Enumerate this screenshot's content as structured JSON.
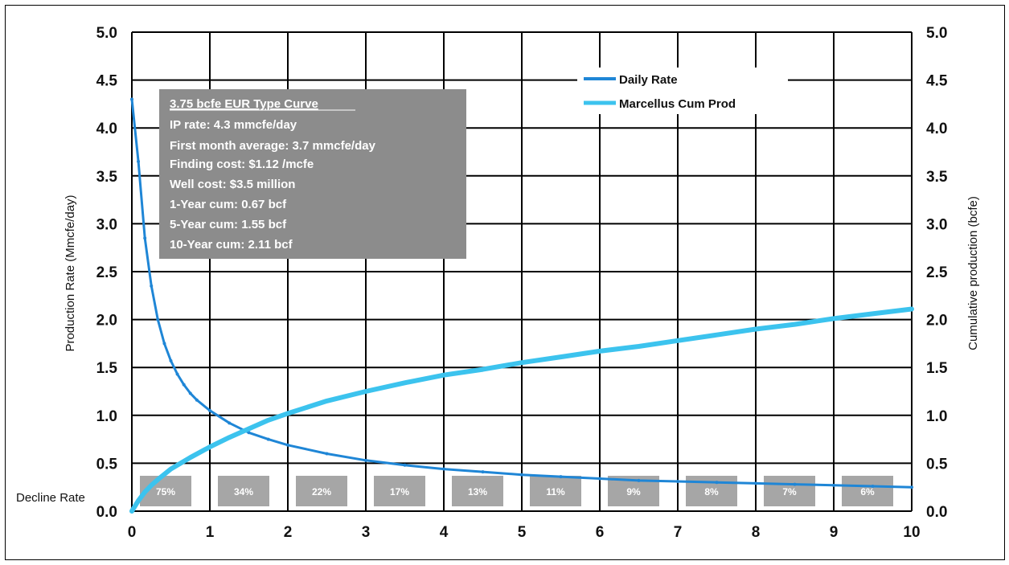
{
  "chart_data": {
    "type": "line",
    "xlabel": "",
    "ylabel_left": "Production Rate (Mmcfe/day)",
    "ylabel_right": "Cumulative production (bcfe)",
    "xlim": [
      0,
      10
    ],
    "ylim_left": [
      0,
      5
    ],
    "ylim_right": [
      0,
      5
    ],
    "x_ticks": [
      "0",
      "1",
      "2",
      "3",
      "4",
      "5",
      "6",
      "7",
      "8",
      "9",
      "10"
    ],
    "y_ticks": [
      "0.0",
      "0.5",
      "1.0",
      "1.5",
      "2.0",
      "2.5",
      "3.0",
      "3.5",
      "4.0",
      "4.5",
      "5.0"
    ],
    "grid": true,
    "legend_position": "top-right",
    "series": [
      {
        "name": "Daily Rate",
        "color": "#1f86d6",
        "x": [
          0,
          0.083,
          0.167,
          0.25,
          0.333,
          0.417,
          0.5,
          0.583,
          0.667,
          0.75,
          0.833,
          1,
          1.25,
          1.5,
          1.75,
          2,
          2.5,
          3,
          3.5,
          4,
          4.5,
          5,
          5.5,
          6,
          6.5,
          7,
          7.5,
          8,
          8.5,
          9,
          9.5,
          10
        ],
        "values": [
          4.3,
          3.65,
          2.85,
          2.35,
          2.0,
          1.75,
          1.57,
          1.43,
          1.32,
          1.23,
          1.16,
          1.05,
          0.92,
          0.82,
          0.75,
          0.69,
          0.6,
          0.53,
          0.48,
          0.44,
          0.41,
          0.38,
          0.36,
          0.34,
          0.32,
          0.31,
          0.3,
          0.29,
          0.28,
          0.27,
          0.26,
          0.25
        ]
      },
      {
        "name": "Marcellus Cum Prod",
        "color": "#3cc3ee",
        "x": [
          0,
          0.083,
          0.167,
          0.25,
          0.333,
          0.5,
          0.75,
          1,
          1.25,
          1.5,
          1.75,
          2,
          2.5,
          3,
          3.5,
          4,
          4.5,
          5,
          5.5,
          6,
          6.5,
          7,
          7.5,
          8,
          8.5,
          9,
          9.5,
          10
        ],
        "values": [
          0,
          0.11,
          0.2,
          0.27,
          0.33,
          0.44,
          0.56,
          0.67,
          0.77,
          0.86,
          0.95,
          1.02,
          1.15,
          1.25,
          1.34,
          1.42,
          1.48,
          1.55,
          1.61,
          1.67,
          1.72,
          1.78,
          1.84,
          1.9,
          1.95,
          2.01,
          2.06,
          2.11
        ]
      }
    ],
    "decline_rate": {
      "label": "Decline Rate",
      "values": [
        "75%",
        "34%",
        "22%",
        "17%",
        "13%",
        "11%",
        "9%",
        "8%",
        "7%",
        "6%"
      ]
    },
    "annotation_box": {
      "title": "3.75 bcfe EUR Type Curve",
      "lines": [
        "IP rate: 4.3 mmcfe/day",
        "First month average: 3.7 mmcfe/day",
        "Finding cost: $1.12 /mcfe",
        "Well cost: $3.5 million",
        "1-Year cum:  0.67 bcf",
        "5-Year cum:  1.55 bcf",
        "10-Year cum:  2.11 bcf"
      ]
    }
  }
}
